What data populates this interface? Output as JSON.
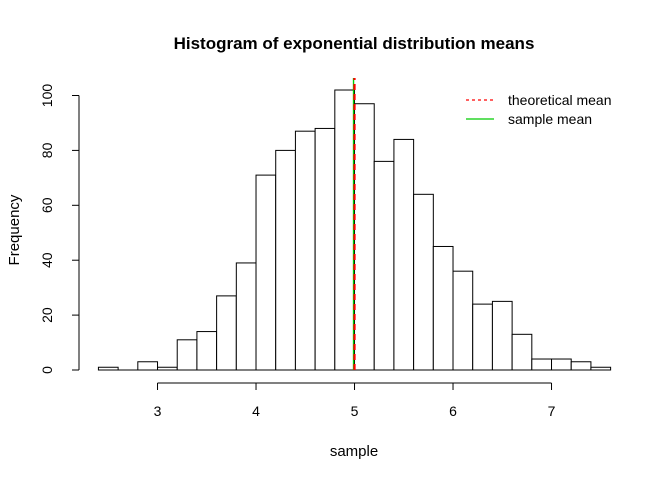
{
  "chart_data": {
    "type": "bar",
    "title": "Histogram of exponential distribution means",
    "xlabel": "sample",
    "ylabel": "Frequency",
    "xlim": [
      2.3,
      7.7
    ],
    "ylim": [
      0,
      105
    ],
    "bin_width": 0.2,
    "bins": [
      {
        "start": 2.4,
        "end": 2.6,
        "count": 1
      },
      {
        "start": 2.6,
        "end": 2.8,
        "count": 0
      },
      {
        "start": 2.8,
        "end": 3.0,
        "count": 3
      },
      {
        "start": 3.0,
        "end": 3.2,
        "count": 1
      },
      {
        "start": 3.2,
        "end": 3.4,
        "count": 11
      },
      {
        "start": 3.4,
        "end": 3.6,
        "count": 14
      },
      {
        "start": 3.6,
        "end": 3.8,
        "count": 27
      },
      {
        "start": 3.8,
        "end": 4.0,
        "count": 39
      },
      {
        "start": 4.0,
        "end": 4.2,
        "count": 71
      },
      {
        "start": 4.2,
        "end": 4.4,
        "count": 80
      },
      {
        "start": 4.4,
        "end": 4.6,
        "count": 87
      },
      {
        "start": 4.6,
        "end": 4.8,
        "count": 88
      },
      {
        "start": 4.8,
        "end": 5.0,
        "count": 102
      },
      {
        "start": 5.0,
        "end": 5.2,
        "count": 97
      },
      {
        "start": 5.2,
        "end": 5.4,
        "count": 76
      },
      {
        "start": 5.4,
        "end": 5.6,
        "count": 84
      },
      {
        "start": 5.6,
        "end": 5.8,
        "count": 64
      },
      {
        "start": 5.8,
        "end": 6.0,
        "count": 45
      },
      {
        "start": 6.0,
        "end": 6.2,
        "count": 36
      },
      {
        "start": 6.2,
        "end": 6.4,
        "count": 24
      },
      {
        "start": 6.4,
        "end": 6.6,
        "count": 25
      },
      {
        "start": 6.6,
        "end": 6.8,
        "count": 13
      },
      {
        "start": 6.8,
        "end": 7.0,
        "count": 4
      },
      {
        "start": 7.0,
        "end": 7.2,
        "count": 4
      },
      {
        "start": 7.2,
        "end": 7.4,
        "count": 3
      },
      {
        "start": 7.4,
        "end": 7.6,
        "count": 1
      }
    ],
    "x_ticks": [
      3,
      4,
      5,
      6,
      7
    ],
    "y_ticks": [
      0,
      20,
      40,
      60,
      80,
      100
    ],
    "x_tick_labels": [
      "3",
      "4",
      "5",
      "6",
      "7"
    ],
    "y_tick_labels": [
      "0",
      "20",
      "40",
      "60",
      "80",
      "100"
    ],
    "vertical_lines": [
      {
        "name": "theoretical mean",
        "x": 5.0,
        "color": "#ff0000",
        "style": "dashed"
      },
      {
        "name": "sample mean",
        "x": 4.99,
        "color": "#00cc00",
        "style": "solid"
      }
    ],
    "legend": {
      "position": "top-right",
      "entries": [
        {
          "label": "theoretical mean",
          "color": "#ff0000",
          "style": "dashed"
        },
        {
          "label": "sample mean",
          "color": "#00cc00",
          "style": "solid"
        }
      ]
    },
    "grid": false,
    "bar_fill": "#ffffff",
    "bar_stroke": "#000000"
  }
}
